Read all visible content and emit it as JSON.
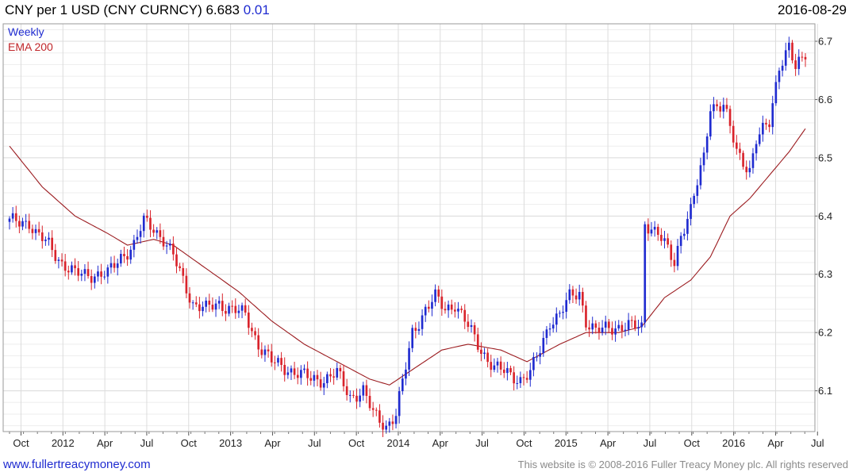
{
  "header": {
    "title_main": "CNY per 1 USD (CNY CURNCY) 6.683",
    "title_change": "0.01",
    "date": "2016-08-29"
  },
  "legend": {
    "weekly": "Weekly",
    "ema": "EMA 200"
  },
  "footer": {
    "site": "www.fullertreacymoney.com",
    "copyright": "This website is © 2008-2016 Fuller Treacy Money plc. All rights reserved"
  },
  "colors": {
    "up": "#1f2bd0",
    "down": "#d9232b",
    "ema": "#9b1b1f",
    "grid": "#dcdcdc"
  },
  "chart_data": {
    "type": "candlestick",
    "title": "CNY per 1 USD (CNY CURNCY) 6.683 0.01",
    "ylim": [
      6.03,
      6.73
    ],
    "yticks": [
      6.1,
      6.2,
      6.3,
      6.4,
      6.5,
      6.6,
      6.7
    ],
    "xticks": [
      "Oct",
      "2012",
      "Apr",
      "Jul",
      "Oct",
      "2013",
      "Apr",
      "Jul",
      "Oct",
      "2014",
      "Apr",
      "Jul",
      "Oct",
      "2015",
      "Apr",
      "Jul",
      "Oct",
      "2016",
      "Apr",
      "Jul"
    ],
    "grid": true,
    "price_anchors": [
      [
        0,
        6.39
      ],
      [
        6,
        6.39
      ],
      [
        8,
        6.37
      ],
      [
        12,
        6.35
      ],
      [
        16,
        6.32
      ],
      [
        20,
        6.3
      ],
      [
        26,
        6.3
      ],
      [
        30,
        6.3
      ],
      [
        34,
        6.33
      ],
      [
        38,
        6.35
      ],
      [
        41,
        6.39
      ],
      [
        44,
        6.38
      ],
      [
        47,
        6.36
      ],
      [
        50,
        6.33
      ],
      [
        53,
        6.29
      ],
      [
        56,
        6.25
      ],
      [
        60,
        6.24
      ],
      [
        64,
        6.25
      ],
      [
        68,
        6.24
      ],
      [
        72,
        6.23
      ],
      [
        76,
        6.18
      ],
      [
        80,
        6.15
      ],
      [
        84,
        6.14
      ],
      [
        88,
        6.13
      ],
      [
        92,
        6.12
      ],
      [
        96,
        6.12
      ],
      [
        100,
        6.13
      ],
      [
        104,
        6.09
      ],
      [
        108,
        6.1
      ],
      [
        111,
        6.06
      ],
      [
        115,
        6.04
      ],
      [
        118,
        6.06
      ],
      [
        121,
        6.14
      ],
      [
        123,
        6.2
      ],
      [
        127,
        6.24
      ],
      [
        130,
        6.26
      ],
      [
        133,
        6.24
      ],
      [
        136,
        6.25
      ],
      [
        140,
        6.21
      ],
      [
        144,
        6.17
      ],
      [
        148,
        6.14
      ],
      [
        152,
        6.13
      ],
      [
        156,
        6.12
      ],
      [
        159,
        6.13
      ],
      [
        162,
        6.17
      ],
      [
        165,
        6.22
      ],
      [
        168,
        6.23
      ],
      [
        171,
        6.26
      ],
      [
        174,
        6.27
      ],
      [
        176,
        6.22
      ],
      [
        179,
        6.2
      ],
      [
        183,
        6.21
      ],
      [
        187,
        6.21
      ],
      [
        190,
        6.21
      ],
      [
        193,
        6.21
      ],
      [
        194,
        6.39
      ],
      [
        198,
        6.37
      ],
      [
        201,
        6.34
      ],
      [
        203,
        6.32
      ],
      [
        205,
        6.37
      ],
      [
        208,
        6.41
      ],
      [
        212,
        6.5
      ],
      [
        214,
        6.59
      ],
      [
        218,
        6.59
      ],
      [
        222,
        6.51
      ],
      [
        226,
        6.48
      ],
      [
        228,
        6.53
      ],
      [
        232,
        6.56
      ],
      [
        235,
        6.66
      ],
      [
        238,
        6.69
      ],
      [
        240,
        6.65
      ],
      [
        243,
        6.68
      ]
    ],
    "ema_anchors": [
      [
        0,
        6.52
      ],
      [
        10,
        6.45
      ],
      [
        20,
        6.4
      ],
      [
        30,
        6.37
      ],
      [
        36,
        6.35
      ],
      [
        44,
        6.36
      ],
      [
        50,
        6.35
      ],
      [
        60,
        6.31
      ],
      [
        70,
        6.27
      ],
      [
        80,
        6.22
      ],
      [
        90,
        6.18
      ],
      [
        100,
        6.15
      ],
      [
        110,
        6.12
      ],
      [
        116,
        6.11
      ],
      [
        124,
        6.14
      ],
      [
        132,
        6.17
      ],
      [
        140,
        6.18
      ],
      [
        150,
        6.17
      ],
      [
        158,
        6.15
      ],
      [
        168,
        6.18
      ],
      [
        176,
        6.2
      ],
      [
        186,
        6.2
      ],
      [
        193,
        6.21
      ],
      [
        200,
        6.26
      ],
      [
        208,
        6.29
      ],
      [
        214,
        6.33
      ],
      [
        220,
        6.4
      ],
      [
        226,
        6.43
      ],
      [
        232,
        6.47
      ],
      [
        238,
        6.51
      ],
      [
        243,
        6.55
      ]
    ],
    "week_count": 244
  }
}
